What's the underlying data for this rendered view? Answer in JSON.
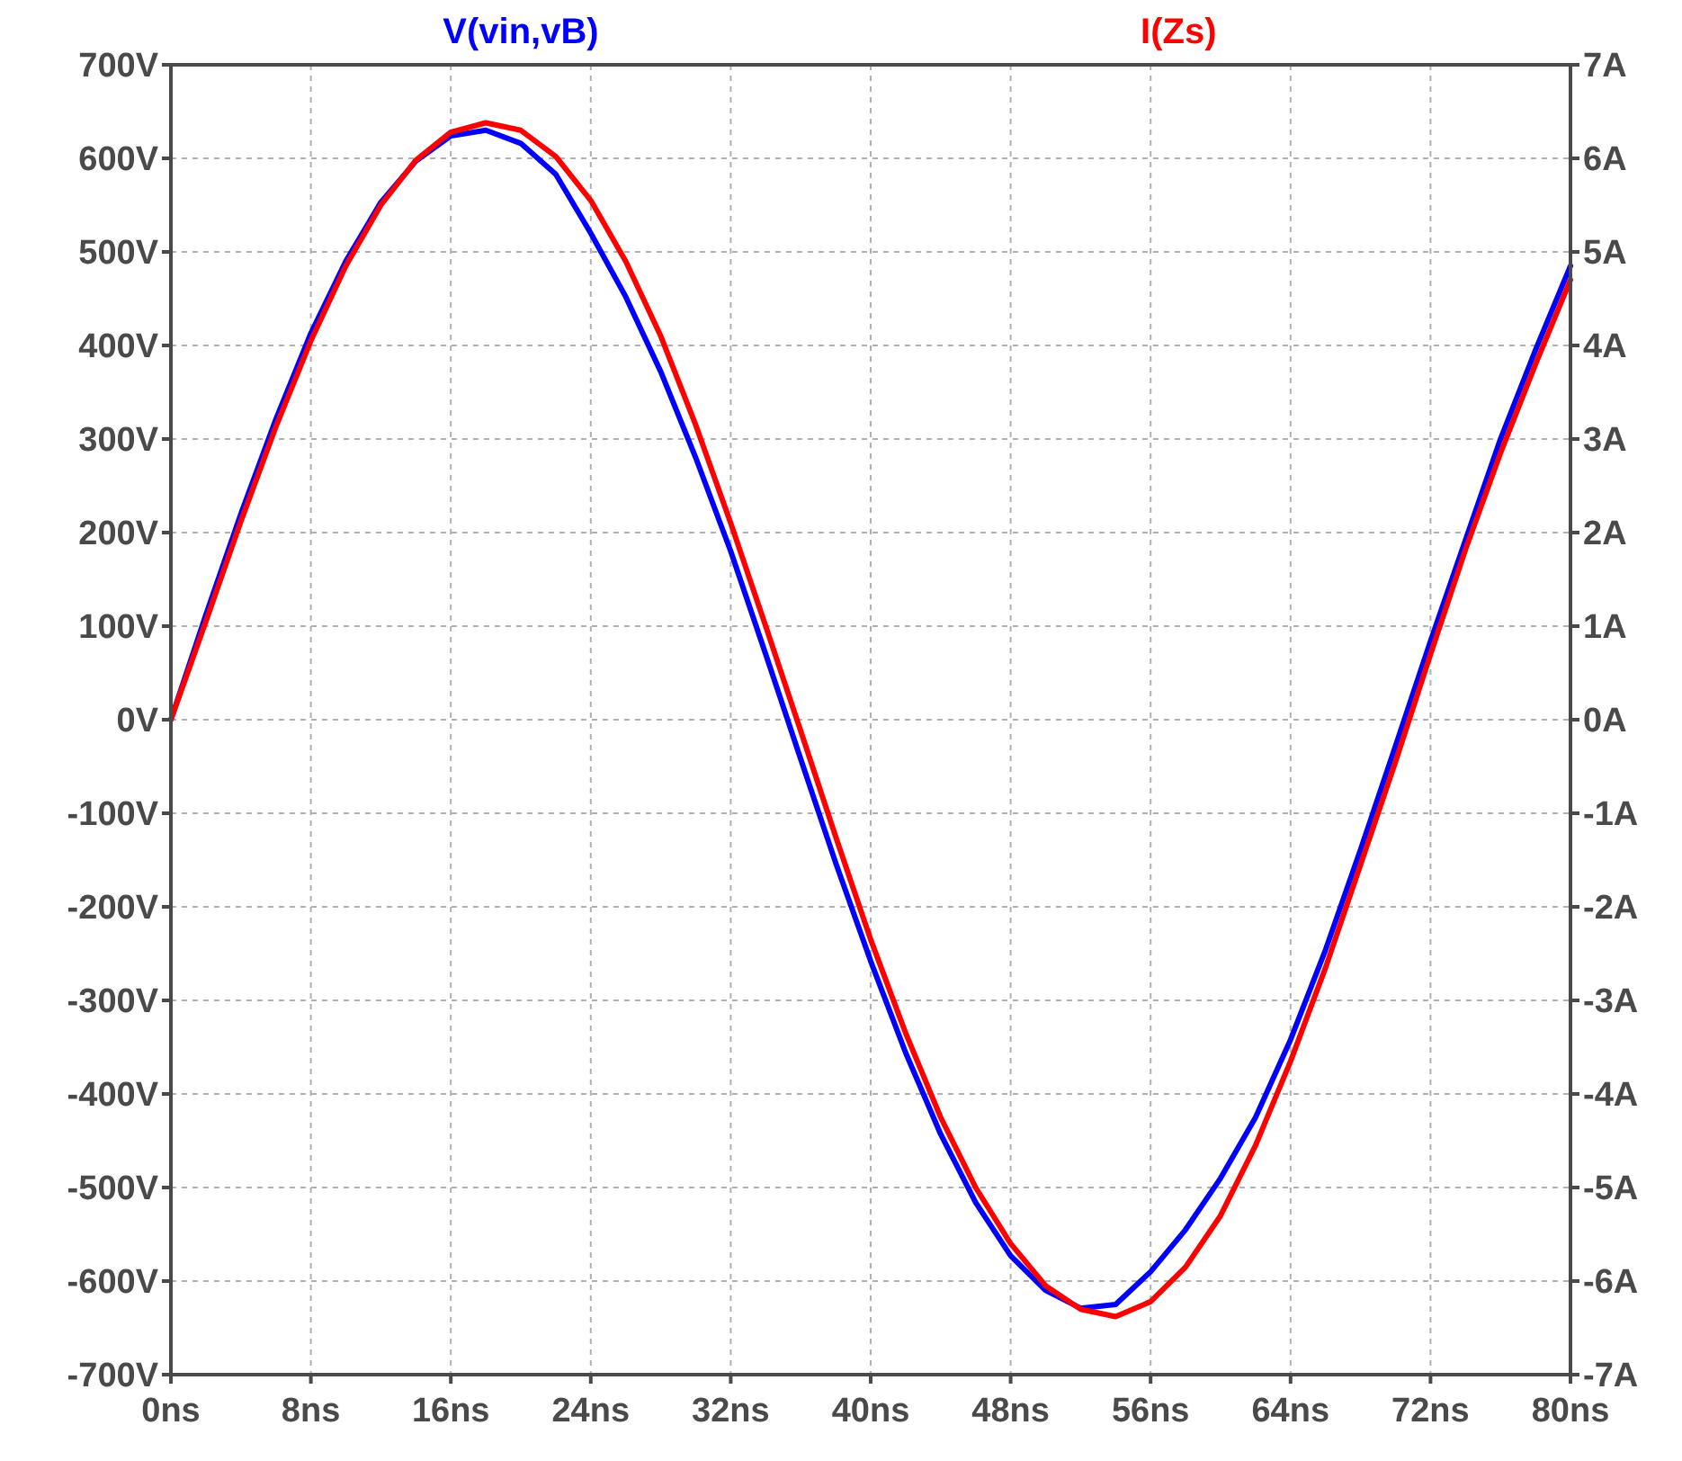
{
  "chart_data": {
    "type": "line",
    "legend": "top",
    "grid": true,
    "x": [
      0,
      2,
      4,
      6,
      8,
      10,
      12,
      14,
      16,
      18,
      20,
      22,
      24,
      26,
      28,
      30,
      32,
      34,
      36,
      38,
      40,
      42,
      44,
      46,
      48,
      50,
      52,
      54,
      56,
      58,
      60,
      62,
      64,
      66,
      68,
      70,
      72,
      74,
      76,
      78,
      80
    ],
    "xlim": [
      0,
      80
    ],
    "xticks": [
      {
        "value": 0,
        "label": "0ns"
      },
      {
        "value": 8,
        "label": "8ns"
      },
      {
        "value": 16,
        "label": "16ns"
      },
      {
        "value": 24,
        "label": "24ns"
      },
      {
        "value": 32,
        "label": "32ns"
      },
      {
        "value": 40,
        "label": "40ns"
      },
      {
        "value": 48,
        "label": "48ns"
      },
      {
        "value": 56,
        "label": "56ns"
      },
      {
        "value": 64,
        "label": "64ns"
      },
      {
        "value": 72,
        "label": "72ns"
      },
      {
        "value": 80,
        "label": "80ns"
      }
    ],
    "ylim": [
      -700,
      700
    ],
    "yticks": [
      {
        "value": -700,
        "label": "-700V"
      },
      {
        "value": -600,
        "label": "-600V"
      },
      {
        "value": -500,
        "label": "-500V"
      },
      {
        "value": -400,
        "label": "-400V"
      },
      {
        "value": -300,
        "label": "-300V"
      },
      {
        "value": -200,
        "label": "-200V"
      },
      {
        "value": -100,
        "label": "-100V"
      },
      {
        "value": 0,
        "label": "0V"
      },
      {
        "value": 100,
        "label": "100V"
      },
      {
        "value": 200,
        "label": "200V"
      },
      {
        "value": 300,
        "label": "300V"
      },
      {
        "value": 400,
        "label": "400V"
      },
      {
        "value": 500,
        "label": "500V"
      },
      {
        "value": 600,
        "label": "600V"
      },
      {
        "value": 700,
        "label": "700V"
      }
    ],
    "y2lim": [
      -7,
      7
    ],
    "y2ticks": [
      {
        "value": -7,
        "label": "-7A"
      },
      {
        "value": -6,
        "label": "-6A"
      },
      {
        "value": -5,
        "label": "-5A"
      },
      {
        "value": -4,
        "label": "-4A"
      },
      {
        "value": -3,
        "label": "-3A"
      },
      {
        "value": -2,
        "label": "-2A"
      },
      {
        "value": -1,
        "label": "-1A"
      },
      {
        "value": 0,
        "label": "0A"
      },
      {
        "value": 1,
        "label": "1A"
      },
      {
        "value": 2,
        "label": "2A"
      },
      {
        "value": 3,
        "label": "3A"
      },
      {
        "value": 4,
        "label": "4A"
      },
      {
        "value": 5,
        "label": "5A"
      },
      {
        "value": 6,
        "label": "6A"
      },
      {
        "value": 7,
        "label": "7A"
      }
    ],
    "series": [
      {
        "name": "V(vin,vB)",
        "color": "#0000ff",
        "values": [
          0,
          112,
          220,
          321,
          413,
          490,
          553,
          597,
          624,
          630,
          616,
          583,
          520,
          452,
          372,
          280,
          180,
          70,
          -42,
          -153,
          -258,
          -356,
          -443,
          -516,
          -573,
          -610,
          -629,
          -625,
          -590,
          -545,
          -490,
          -425,
          -342,
          -246,
          -139,
          -28,
          84,
          192,
          300,
          395,
          485
        ]
      },
      {
        "name": "I(Zs)",
        "color": "#ff0000",
        "axis": "y2",
        "values": [
          0,
          1.05,
          2.12,
          3.13,
          4.05,
          4.85,
          5.5,
          5.98,
          6.28,
          6.38,
          6.3,
          6.02,
          5.55,
          4.9,
          4.1,
          3.15,
          2.1,
          1.0,
          -0.12,
          -1.25,
          -2.35,
          -3.35,
          -4.25,
          -5.0,
          -5.6,
          -6.05,
          -6.3,
          -6.38,
          -6.22,
          -5.85,
          -5.3,
          -4.55,
          -3.65,
          -2.65,
          -1.55,
          -0.45,
          0.7,
          1.82,
          2.85,
          3.8,
          4.7
        ]
      }
    ]
  }
}
